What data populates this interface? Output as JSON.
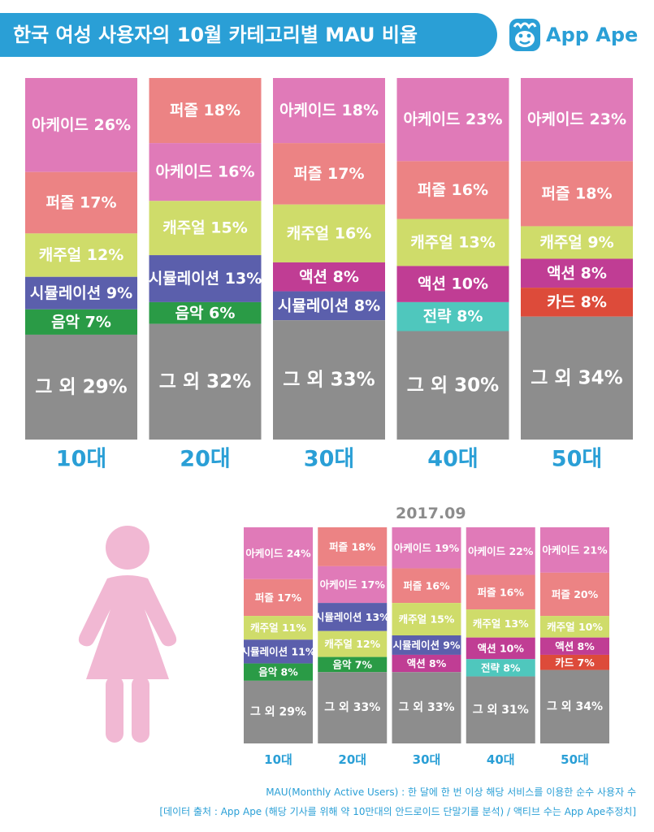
{
  "title": "한국 여성 사용자의 10월 카테고리별 MAU 비율",
  "brand": {
    "name": "App Ape",
    "color": "#2a9fd6"
  },
  "icons": {
    "logo": "monkey-face-icon",
    "figure": "woman-figure-icon"
  },
  "category_colors": {
    "아케이드": "#e07ab8",
    "퍼즐": "#ec8384",
    "캐주얼": "#cfdc6a",
    "시뮬레이션": "#5b5fac",
    "음악": "#2a9b46",
    "액션": "#c03d94",
    "전략": "#4fc7bd",
    "카드": "#dd4b3a",
    "그 외": "#8d8d8d"
  },
  "period_label": "2017.09",
  "notes": [
    "MAU(Monthly Active Users) : 한 달에 한 번 이상 해당 서비스를 이용한 순수 사용자 수",
    "[데이터 출처 : App Ape (해당 기사를 위해 약 10만대의 안드로이드 단말기를 분석) / 액티브 수는 App Ape추정치]"
  ],
  "chart_data": [
    {
      "type": "bar",
      "stacked": true,
      "title": "한국 여성 사용자의 10월 카테고리별 MAU 비율",
      "xlabel": "",
      "ylabel": "",
      "ylim": [
        0,
        100
      ],
      "categories": [
        "10대",
        "20대",
        "30대",
        "40대",
        "50대"
      ],
      "bars": [
        {
          "age": "10대",
          "segments": [
            {
              "name": "아케이드",
              "value": 26
            },
            {
              "name": "퍼즐",
              "value": 17
            },
            {
              "name": "캐주얼",
              "value": 12
            },
            {
              "name": "시뮬레이션",
              "value": 9
            },
            {
              "name": "음악",
              "value": 7
            },
            {
              "name": "그 외",
              "value": 29
            }
          ]
        },
        {
          "age": "20대",
          "segments": [
            {
              "name": "퍼즐",
              "value": 18
            },
            {
              "name": "아케이드",
              "value": 16
            },
            {
              "name": "캐주얼",
              "value": 15
            },
            {
              "name": "시뮬레이션",
              "value": 13
            },
            {
              "name": "음악",
              "value": 6
            },
            {
              "name": "그 외",
              "value": 32
            }
          ]
        },
        {
          "age": "30대",
          "segments": [
            {
              "name": "아케이드",
              "value": 18
            },
            {
              "name": "퍼즐",
              "value": 17
            },
            {
              "name": "캐주얼",
              "value": 16
            },
            {
              "name": "액션",
              "value": 8
            },
            {
              "name": "시뮬레이션",
              "value": 8
            },
            {
              "name": "그 외",
              "value": 33
            }
          ]
        },
        {
          "age": "40대",
          "segments": [
            {
              "name": "아케이드",
              "value": 23
            },
            {
              "name": "퍼즐",
              "value": 16
            },
            {
              "name": "캐주얼",
              "value": 13
            },
            {
              "name": "액션",
              "value": 10
            },
            {
              "name": "전략",
              "value": 8
            },
            {
              "name": "그 외",
              "value": 30
            }
          ]
        },
        {
          "age": "50대",
          "segments": [
            {
              "name": "아케이드",
              "value": 23
            },
            {
              "name": "퍼즐",
              "value": 18
            },
            {
              "name": "캐주얼",
              "value": 9
            },
            {
              "name": "액션",
              "value": 8
            },
            {
              "name": "카드",
              "value": 8
            },
            {
              "name": "그 외",
              "value": 34
            }
          ]
        }
      ]
    },
    {
      "type": "bar",
      "stacked": true,
      "title": "2017.09",
      "xlabel": "",
      "ylabel": "",
      "ylim": [
        0,
        100
      ],
      "categories": [
        "10대",
        "20대",
        "30대",
        "40대",
        "50대"
      ],
      "bars": [
        {
          "age": "10대",
          "segments": [
            {
              "name": "아케이드",
              "value": 24
            },
            {
              "name": "퍼즐",
              "value": 17
            },
            {
              "name": "캐주얼",
              "value": 11
            },
            {
              "name": "시뮬레이션",
              "value": 11
            },
            {
              "name": "음악",
              "value": 8
            },
            {
              "name": "그 외",
              "value": 29
            }
          ]
        },
        {
          "age": "20대",
          "segments": [
            {
              "name": "퍼즐",
              "value": 18
            },
            {
              "name": "아케이드",
              "value": 17
            },
            {
              "name": "시뮬레이션",
              "value": 13
            },
            {
              "name": "캐주얼",
              "value": 12
            },
            {
              "name": "음악",
              "value": 7
            },
            {
              "name": "그 외",
              "value": 33
            }
          ]
        },
        {
          "age": "30대",
          "segments": [
            {
              "name": "아케이드",
              "value": 19
            },
            {
              "name": "퍼즐",
              "value": 16
            },
            {
              "name": "캐주얼",
              "value": 15
            },
            {
              "name": "시뮬레이션",
              "value": 9
            },
            {
              "name": "액션",
              "value": 8
            },
            {
              "name": "그 외",
              "value": 33
            }
          ]
        },
        {
          "age": "40대",
          "segments": [
            {
              "name": "아케이드",
              "value": 22
            },
            {
              "name": "퍼즐",
              "value": 16
            },
            {
              "name": "캐주얼",
              "value": 13
            },
            {
              "name": "액션",
              "value": 10
            },
            {
              "name": "전략",
              "value": 8
            },
            {
              "name": "그 외",
              "value": 31
            }
          ]
        },
        {
          "age": "50대",
          "segments": [
            {
              "name": "아케이드",
              "value": 21
            },
            {
              "name": "퍼즐",
              "value": 20
            },
            {
              "name": "캐주얼",
              "value": 10
            },
            {
              "name": "액션",
              "value": 8
            },
            {
              "name": "카드",
              "value": 7
            },
            {
              "name": "그 외",
              "value": 34
            }
          ]
        }
      ]
    }
  ]
}
